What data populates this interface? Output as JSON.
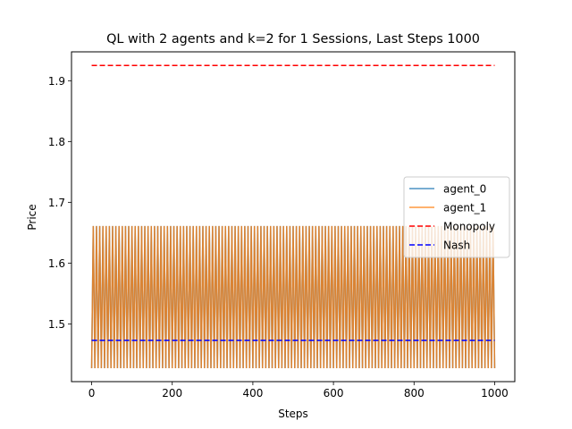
{
  "chart_data": {
    "type": "line",
    "title": "QL with 2 agents and k=2 for 1 Sessions, Last Steps 1000",
    "xlabel": "Steps",
    "ylabel": "Price",
    "xlim": [
      -50,
      1050
    ],
    "ylim": [
      1.405,
      1.9475
    ],
    "xticks": [
      0,
      200,
      400,
      600,
      800,
      1000
    ],
    "yticks": [
      1.5,
      1.6,
      1.7,
      1.8,
      1.9
    ],
    "xtick_labels": [
      "0",
      "200",
      "400",
      "600",
      "800",
      "1000"
    ],
    "ytick_labels": [
      "1.5",
      "1.6",
      "1.7",
      "1.8",
      "1.9"
    ],
    "grid": false,
    "legend_position": "center-right",
    "series": [
      {
        "name": "agent_0",
        "color": "#1f77b4",
        "style": "solid",
        "alpha": 0.8,
        "pattern": "oscillation between two prices every step",
        "x_range": [
          0,
          1000
        ],
        "low": 1.427,
        "high": 1.661
      },
      {
        "name": "agent_1",
        "color": "#ff7f0e",
        "style": "solid",
        "alpha": 0.8,
        "pattern": "oscillation between two prices every step",
        "x_range": [
          0,
          1000
        ],
        "low": 1.427,
        "high": 1.661
      },
      {
        "name": "Monopoly",
        "color": "#ff0000",
        "style": "dashed",
        "x": [
          0,
          1000
        ],
        "values": [
          1.925,
          1.925
        ]
      },
      {
        "name": "Nash",
        "color": "#0000ff",
        "style": "dashed",
        "x": [
          0,
          1000
        ],
        "values": [
          1.473,
          1.473
        ]
      }
    ]
  }
}
